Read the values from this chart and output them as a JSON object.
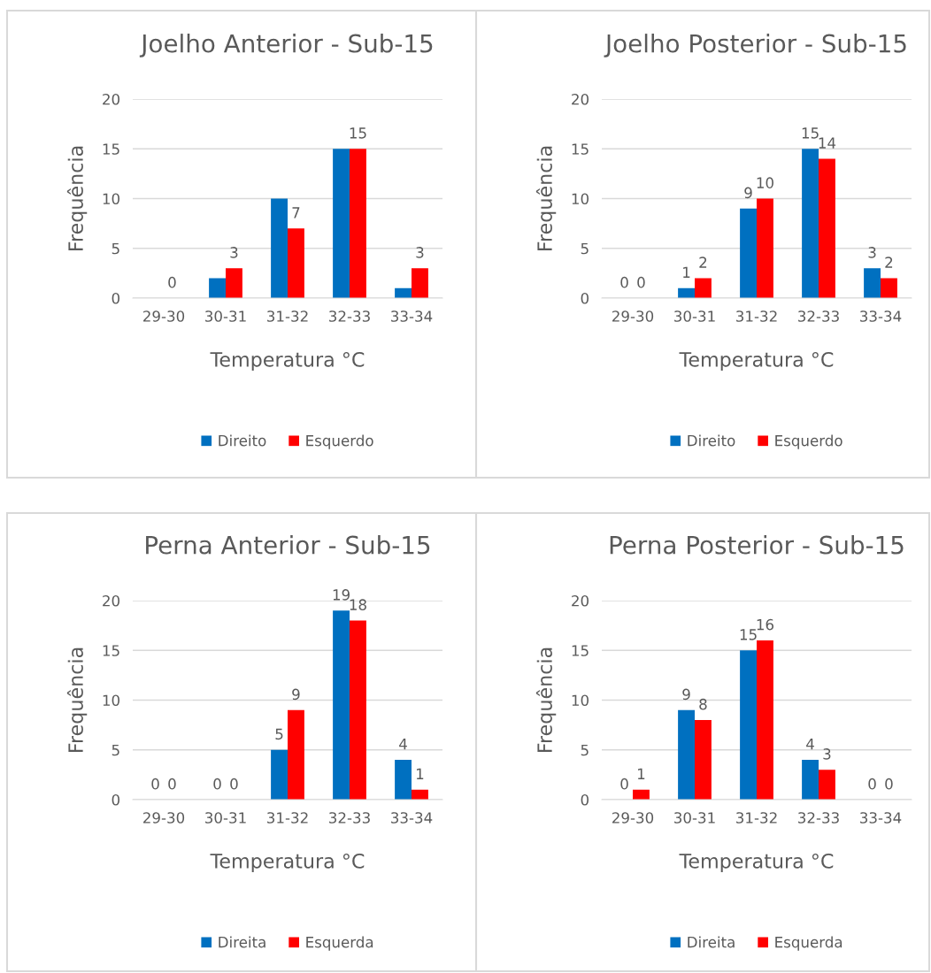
{
  "chart_data": [
    {
      "type": "bar",
      "title": "Joelho Anterior - Sub-15",
      "xlabel": "Temperatura °C",
      "ylabel": "Frequência",
      "categories": [
        "29-30",
        "30-31",
        "31-32",
        "32-33",
        "33-34"
      ],
      "series": [
        {
          "name": "Direito",
          "color": "#0070c0",
          "values": [
            0,
            2,
            10,
            15,
            1
          ],
          "value_labels": [
            null,
            null,
            null,
            null,
            null
          ]
        },
        {
          "name": "Esquerdo",
          "color": "#ff0000",
          "values": [
            0,
            3,
            7,
            15,
            3
          ],
          "value_labels": [
            "0",
            "3",
            "7",
            "15",
            "3"
          ]
        }
      ],
      "ylim": [
        0,
        20
      ],
      "yticks": [
        0,
        5,
        10,
        15,
        20
      ],
      "grid": "y",
      "legend": "bottom"
    },
    {
      "type": "bar",
      "title": "Joelho Posterior - Sub-15",
      "xlabel": "Temperatura °C",
      "ylabel": "Frequência",
      "categories": [
        "29-30",
        "30-31",
        "31-32",
        "32-33",
        "33-34"
      ],
      "series": [
        {
          "name": "Direito",
          "color": "#0070c0",
          "values": [
            0,
            1,
            9,
            15,
            3
          ]
        },
        {
          "name": "Esquerdo",
          "color": "#ff0000",
          "values": [
            0,
            2,
            10,
            14,
            2
          ]
        }
      ],
      "ylim": [
        0,
        20
      ],
      "yticks": [
        0,
        5,
        10,
        15,
        20
      ],
      "grid": "y",
      "legend": "bottom",
      "data_labels": true
    },
    {
      "type": "bar",
      "title": "Perna Anterior - Sub-15",
      "xlabel": "Temperatura °C",
      "ylabel": "Frequência",
      "categories": [
        "29-30",
        "30-31",
        "31-32",
        "32-33",
        "33-34"
      ],
      "series": [
        {
          "name": "Direita",
          "color": "#0070c0",
          "values": [
            0,
            0,
            5,
            19,
            4
          ]
        },
        {
          "name": "Esquerda",
          "color": "#ff0000",
          "values": [
            0,
            0,
            9,
            18,
            1
          ]
        }
      ],
      "ylim": [
        0,
        20
      ],
      "yticks": [
        0,
        5,
        10,
        15,
        20
      ],
      "grid": "y",
      "legend": "bottom",
      "data_labels": true
    },
    {
      "type": "bar",
      "title": "Perna Posterior - Sub-15",
      "xlabel": "Temperatura °C",
      "ylabel": "Frequência",
      "categories": [
        "29-30",
        "30-31",
        "31-32",
        "32-33",
        "33-34"
      ],
      "series": [
        {
          "name": "Direita",
          "color": "#0070c0",
          "values": [
            0,
            9,
            15,
            4,
            0
          ]
        },
        {
          "name": "Esquerda",
          "color": "#ff0000",
          "values": [
            1,
            8,
            16,
            3,
            0
          ]
        }
      ],
      "ylim": [
        0,
        20
      ],
      "yticks": [
        0,
        5,
        10,
        15,
        20
      ],
      "grid": "y",
      "legend": "bottom",
      "data_labels": true
    }
  ]
}
